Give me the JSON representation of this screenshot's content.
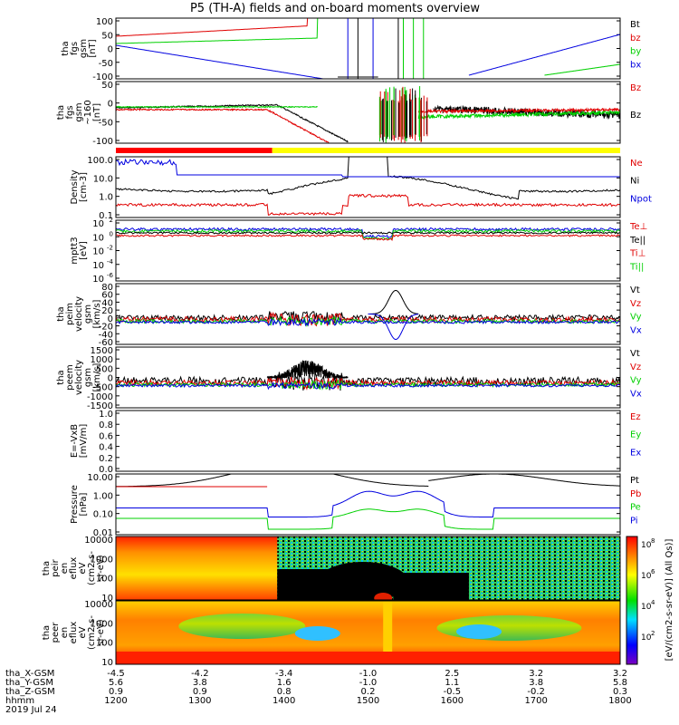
{
  "title": "P5 (TH-A) fields and on-board moments overview",
  "colors": {
    "black": "#000000",
    "red": "#e00000",
    "green": "#00d000",
    "blue": "#0000e0",
    "yellow": "#ffff00",
    "bar_red": "#ff0000"
  },
  "chart_data": [
    {
      "type": "line",
      "panel": "fgs",
      "ylabel": [
        "tha",
        "fgs",
        "gsm",
        "[nT]"
      ],
      "ylim": [
        -100,
        100
      ],
      "yticks": [
        "100",
        "50",
        "0",
        "-50",
        "-100"
      ],
      "legend": [
        {
          "label": "Bt",
          "color": "#000000"
        },
        {
          "label": "bz",
          "color": "#e00000"
        },
        {
          "label": "by",
          "color": "#00d000"
        },
        {
          "label": "bx",
          "color": "#0000e0"
        }
      ]
    },
    {
      "type": "line",
      "panel": "fgs-dsl",
      "ylabel": [
        "tha",
        "fgs",
        "gsm",
        "~160",
        "[nT]"
      ],
      "ylim": [
        -100,
        50
      ],
      "yticks": [
        "50",
        "0",
        "-50",
        "-100"
      ],
      "legend": [
        {
          "label": "Bz",
          "color": "#e00000"
        },
        {
          "label": "Bz",
          "color": "#000000"
        }
      ]
    },
    {
      "type": "line",
      "panel": "density",
      "ylabel": [
        "Density",
        "[cm-3]"
      ],
      "scale": "log",
      "yticks": [
        "100.0",
        "10.0",
        "1.0",
        "0.1"
      ],
      "legend": [
        {
          "label": "Ne",
          "color": "#e00000"
        },
        {
          "label": "Ni",
          "color": "#000000"
        },
        {
          "label": "Npot",
          "color": "#0000e0"
        }
      ]
    },
    {
      "type": "line",
      "panel": "temperature",
      "ylabel": [
        "mptt3",
        "[eV]"
      ],
      "scale": "log",
      "yticks": [
        "10^2",
        "10^0",
        "10^-2",
        "10^-4",
        "10^-6"
      ],
      "legend": [
        {
          "label": "Te⊥",
          "color": "#e00000"
        },
        {
          "label": "Te||",
          "color": "#000000"
        },
        {
          "label": "Ti⊥",
          "color": "#e00000"
        },
        {
          "label": "Ti||",
          "color": "#00d000"
        }
      ]
    },
    {
      "type": "line",
      "panel": "peim-velocity",
      "ylabel": [
        "tha",
        "peim",
        "velocity",
        "gsm",
        "[km/s]"
      ],
      "ylim": [
        -60,
        80
      ],
      "yticks": [
        "80",
        "60",
        "40",
        "20",
        "0",
        "-20",
        "-40",
        "-60"
      ],
      "legend": [
        {
          "label": "Vt",
          "color": "#000000"
        },
        {
          "label": "Vz",
          "color": "#e00000"
        },
        {
          "label": "Vy",
          "color": "#00d000"
        },
        {
          "label": "Vx",
          "color": "#0000e0"
        }
      ]
    },
    {
      "type": "line",
      "panel": "peem-velocity",
      "ylabel": [
        "tha",
        "peem",
        "velocity",
        "gsm",
        "[km/s]"
      ],
      "ylim": [
        -1500,
        1500
      ],
      "yticks": [
        "1500",
        "1000",
        "500",
        "0",
        "-500",
        "-1000",
        "-1500"
      ],
      "legend": [
        {
          "label": "Vt",
          "color": "#000000"
        },
        {
          "label": "Vz",
          "color": "#e00000"
        },
        {
          "label": "Vy",
          "color": "#00d000"
        },
        {
          "label": "Vx",
          "color": "#0000e0"
        }
      ]
    },
    {
      "type": "line",
      "panel": "efield",
      "ylabel": [
        "E=-VxB",
        "[mV/m]"
      ],
      "ylim": [
        0,
        1
      ],
      "yticks": [
        "1.0",
        "0.8",
        "0.6",
        "0.4",
        "0.2",
        "0.0"
      ],
      "legend": [
        {
          "label": "Ez",
          "color": "#e00000"
        },
        {
          "label": "Ey",
          "color": "#00d000"
        },
        {
          "label": "Ex",
          "color": "#0000e0"
        }
      ]
    },
    {
      "type": "line",
      "panel": "pressure",
      "ylabel": [
        "Pressure",
        "[nPa]"
      ],
      "scale": "log",
      "yticks": [
        "10.00",
        "1.00",
        "0.10",
        "0.01"
      ],
      "legend": [
        {
          "label": "Pt",
          "color": "#000000"
        },
        {
          "label": "Pb",
          "color": "#e00000"
        },
        {
          "label": "Pe",
          "color": "#00d000"
        },
        {
          "label": "Pi",
          "color": "#0000e0"
        }
      ]
    },
    {
      "type": "heatmap",
      "panel": "peir",
      "ylabel": [
        "tha",
        "peir",
        "en",
        "eflux",
        "eV",
        "(cm2-s-",
        "sr-eV)"
      ],
      "scale": "log",
      "yticks": [
        "10000",
        "1000",
        "100",
        "10"
      ]
    },
    {
      "type": "heatmap",
      "panel": "peer",
      "ylabel": [
        "tha",
        "peer",
        "en",
        "eflux",
        "eV",
        "(cm2-s-",
        "sr-eV)"
      ],
      "scale": "log",
      "yticks": [
        "10000",
        "1000",
        "100",
        "10"
      ]
    }
  ],
  "colorbar": {
    "label": "[eV/(cm2-s-sr-eV)] (All Qs)]",
    "ticks": [
      "10^8",
      "10^6",
      "10^4",
      "10^2"
    ]
  },
  "xaxis": {
    "rows": [
      {
        "label": "tha_X-GSM",
        "values": [
          "-4.5",
          "-4.2",
          "-3.4",
          "-1.0",
          "2.5",
          "3.2",
          "3.2"
        ]
      },
      {
        "label": "tha_Y-GSM",
        "values": [
          "5.6",
          "3.8",
          "1.6",
          "-1.0",
          "1.1",
          "3.8",
          "5.8"
        ]
      },
      {
        "label": "tha_Z-GSM",
        "values": [
          "0.9",
          "0.9",
          "0.8",
          "0.2",
          "-0.5",
          "-0.2",
          "0.3"
        ]
      },
      {
        "label": "hhmm",
        "values": [
          "1200",
          "1300",
          "1400",
          "1500",
          "1600",
          "1700",
          "1800"
        ]
      }
    ],
    "date": "2019 Jul 24"
  }
}
